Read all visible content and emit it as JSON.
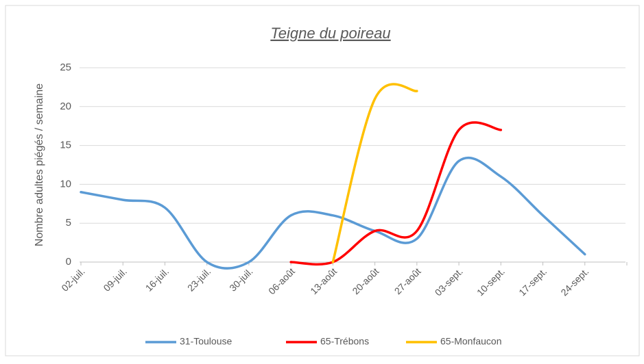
{
  "chart_data": {
    "type": "line",
    "title": "Teigne du poireau",
    "y_label": "Nombre adultes piégés / semaine",
    "categories": [
      "02-juil.",
      "09-juil.",
      "16-juil.",
      "23-juil.",
      "30-juil.",
      "06-août",
      "13-août",
      "20-août",
      "27-août",
      "03-sept.",
      "10-sept.",
      "17-sept.",
      "24-sept.",
      null
    ],
    "series": [
      {
        "name": "31-Toulouse",
        "color": "#5b9bd5",
        "values": [
          9,
          8,
          7,
          0,
          0,
          6,
          6,
          4,
          3,
          13,
          11,
          6,
          1,
          null
        ]
      },
      {
        "name": "65-Trébons",
        "color": "#ff0000",
        "values": [
          null,
          null,
          null,
          null,
          null,
          0,
          0,
          4,
          4,
          17,
          17,
          null,
          null,
          null
        ]
      },
      {
        "name": "65-Monfaucon",
        "color": "#ffc000",
        "values": [
          null,
          null,
          null,
          null,
          null,
          null,
          0,
          21,
          22,
          null,
          null,
          null,
          null,
          null
        ]
      }
    ],
    "ylim": [
      0,
      25
    ],
    "yticks": [
      0,
      5,
      10,
      15,
      20,
      25
    ],
    "grid": true,
    "smooth": true,
    "legend": "bottom"
  }
}
